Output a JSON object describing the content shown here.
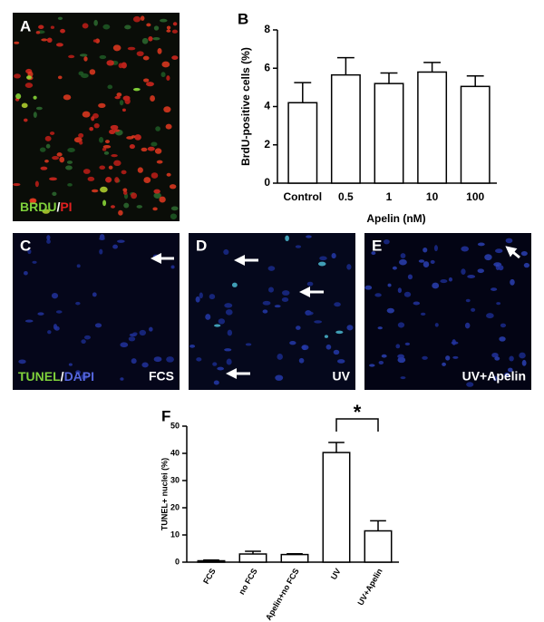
{
  "chart_data": [
    {
      "type": "bar",
      "panel": "B",
      "ylabel": "BrdU-positive cells (%)",
      "xlabel": "Apelin (nM)",
      "categories": [
        "Control",
        "0.5",
        "1",
        "10",
        "100"
      ],
      "values": [
        4.2,
        5.65,
        5.2,
        5.8,
        5.05
      ],
      "errors": [
        1.05,
        0.9,
        0.55,
        0.5,
        0.55
      ],
      "color": "#ffffff",
      "ylim": [
        0,
        8
      ],
      "yticks": [
        0,
        2,
        4,
        6,
        8
      ]
    },
    {
      "type": "bar",
      "panel": "F",
      "ylabel": "TUNEL+ nuclei (%)",
      "categories": [
        "FCS",
        "no FCS",
        "Apelin+no FCS",
        "UV",
        "UV+Apelin"
      ],
      "values": [
        0.5,
        3,
        2.8,
        40.3,
        11.5
      ],
      "errors": [
        0.3,
        1,
        0.3,
        3.7,
        3.7
      ],
      "color": "#ffffff",
      "ylim": [
        0,
        50
      ],
      "yticks": [
        0,
        10,
        20,
        30,
        40,
        50
      ],
      "significance": "*"
    }
  ],
  "images": [
    {
      "label": "A",
      "stain": [
        "BRDU",
        "/",
        "PI"
      ]
    },
    {
      "label": "C",
      "stain": [
        "TUNEL",
        "/",
        "DAPI"
      ],
      "condition": "FCS"
    },
    {
      "label": "D",
      "condition": "UV"
    },
    {
      "label": "E",
      "condition": "UV+Apelin"
    }
  ]
}
